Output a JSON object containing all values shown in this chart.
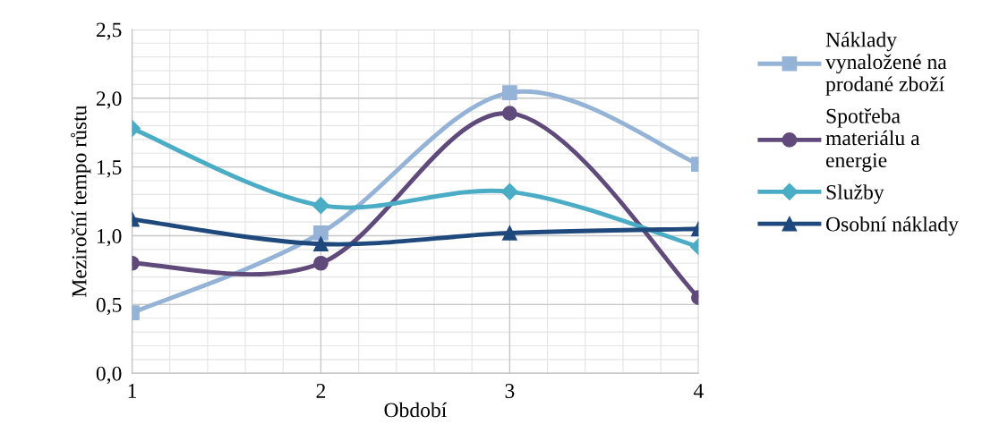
{
  "chart_data": {
    "type": "line",
    "xlabel": "Období",
    "ylabel": "Meziroční tempo růstu",
    "x": [
      1,
      2,
      3,
      4
    ],
    "xlim": [
      1,
      4
    ],
    "xticks": [
      1,
      2,
      3,
      4
    ],
    "ylim": [
      0,
      2.5
    ],
    "yticks": [
      {
        "value": 0,
        "label": "0,0"
      },
      {
        "value": 0.5,
        "label": "0,5"
      },
      {
        "value": 1.0,
        "label": "1,0"
      },
      {
        "value": 1.5,
        "label": "1,5"
      },
      {
        "value": 2.0,
        "label": "2,0"
      },
      {
        "value": 2.5,
        "label": "2,5"
      }
    ],
    "grid": true,
    "legend": "right",
    "line_style": "solid",
    "series": [
      {
        "name": "Náklady vynaložené na prodané zboží",
        "color": "#95b3d7",
        "marker": "square",
        "values": [
          0.44,
          1.02,
          2.04,
          1.52
        ]
      },
      {
        "name": "Spotřeba materiálu a energie",
        "color": "#604a7b",
        "marker": "circle",
        "values": [
          0.8,
          0.8,
          1.89,
          0.55
        ]
      },
      {
        "name": "Služby",
        "color": "#4bacc6",
        "marker": "diamond",
        "values": [
          1.78,
          1.22,
          1.32,
          0.92
        ]
      },
      {
        "name": "Osobní náklady",
        "color": "#1f497d",
        "marker": "triangle",
        "values": [
          1.12,
          0.94,
          1.02,
          1.05
        ]
      }
    ]
  }
}
